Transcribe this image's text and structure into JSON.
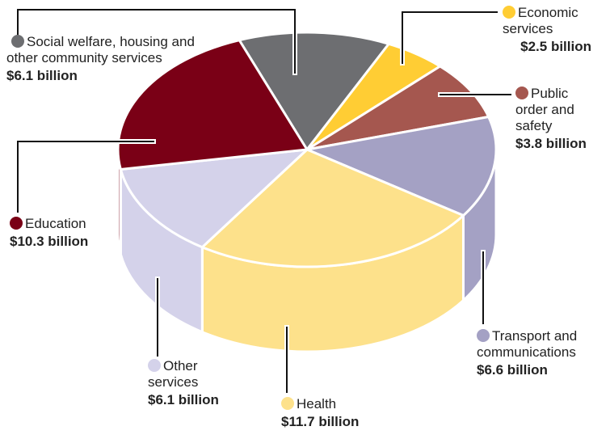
{
  "chart_data": {
    "type": "pie",
    "categories": [
      "Social welfare, housing and other community services",
      "Economic services",
      "Public order and safety",
      "Transport and communications",
      "Health",
      "Other services",
      "Education"
    ],
    "values": [
      6.1,
      2.5,
      3.8,
      6.6,
      11.7,
      6.1,
      10.3
    ],
    "value_labels": [
      "$6.1 billion",
      "$2.5 billion",
      "$3.8 billion",
      "$6.6 billion",
      "$11.7 billion",
      "$6.1 billion",
      "$10.3 billion"
    ],
    "colors": [
      "#6d6e71",
      "#ffcd34",
      "#a5574f",
      "#a4a1c4",
      "#fde18b",
      "#d4d2ea",
      "#7a0016"
    ]
  }
}
